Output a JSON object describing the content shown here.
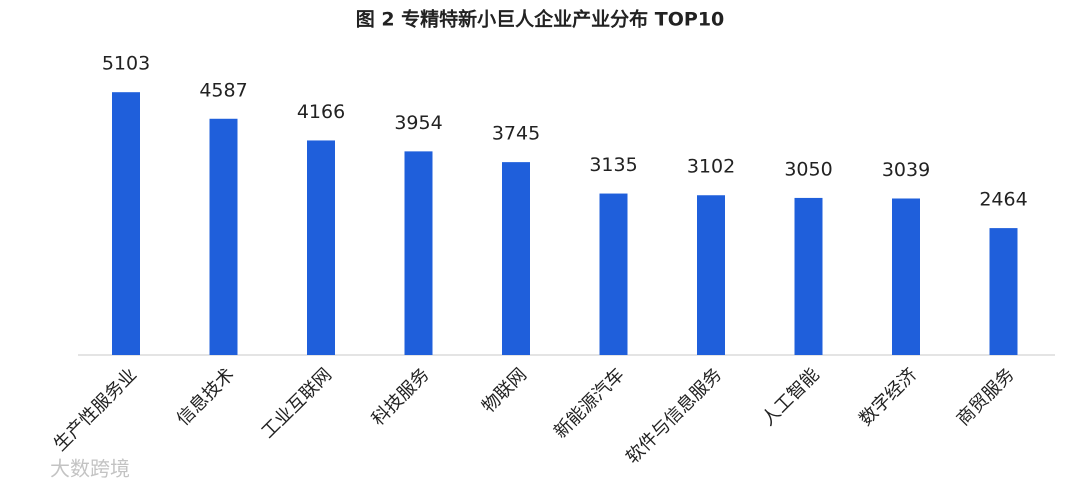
{
  "chart_data": {
    "type": "bar",
    "title": "图 2  专精特新小巨人企业产业分布 TOP10",
    "categories": [
      "生产性服务业",
      "信息技术",
      "工业互联网",
      "科技服务",
      "物联网",
      "新能源汽车",
      "软件与信息服务",
      "人工智能",
      "数字经济",
      "商贸服务"
    ],
    "values": [
      5103,
      4587,
      4166,
      3954,
      3745,
      3135,
      3102,
      3050,
      3039,
      2464
    ],
    "color": "#1f5fdb",
    "ylim": [
      0,
      6000
    ],
    "watermark": "大数跨境"
  }
}
